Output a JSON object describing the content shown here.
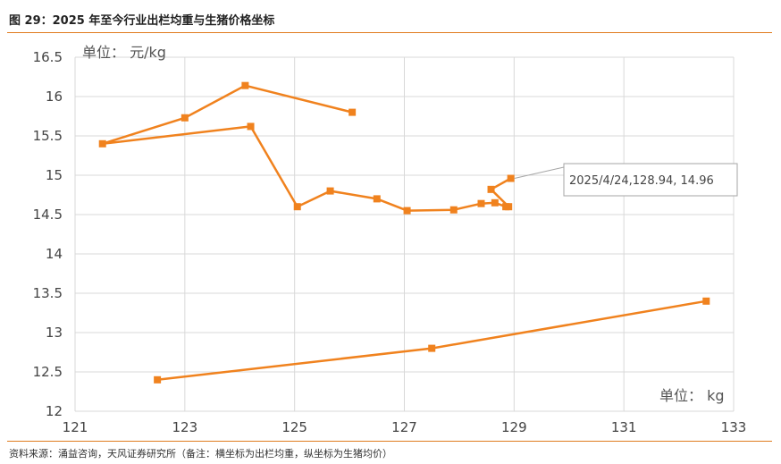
{
  "title": "图 29：2025 年至今行业出栏均重与生猪价格坐标",
  "source": "资料来源：涌益咨询，天风证券研究所（备注：横坐标为出栏均重，纵坐标为生猪均价）",
  "colors": {
    "series": "#F0821E",
    "grid": "#D9D9D9",
    "rule": "#E07C1F",
    "callout_border": "#A6A6A6"
  },
  "chart_data": {
    "type": "scatter",
    "lines": true,
    "x": [
      125.05,
      125.65,
      126.5,
      127.05,
      127.9,
      128.4,
      128.65,
      128.85,
      128.9,
      128.58,
      128.94
    ],
    "y": [
      14.6,
      14.8,
      14.7,
      14.55,
      14.56,
      14.64,
      14.65,
      14.6,
      14.6,
      14.82,
      14.96
    ],
    "series": [
      {
        "x": [
          126.05,
          124.1,
          123.0,
          121.5,
          124.2,
          125.05,
          125.65,
          126.5,
          127.05,
          127.9,
          128.4,
          128.65,
          128.85,
          128.9,
          128.58,
          128.94
        ],
        "y": [
          15.8,
          16.14,
          15.73,
          15.4,
          15.62,
          14.6,
          14.8,
          14.7,
          14.55,
          14.56,
          14.64,
          14.65,
          14.6,
          14.6,
          14.82,
          14.96
        ]
      },
      {
        "x": [
          122.5,
          127.5,
          132.5
        ],
        "y": [
          12.4,
          12.8,
          13.4
        ]
      }
    ],
    "xlim": [
      121,
      133
    ],
    "ylim": [
      12,
      16.5
    ],
    "xticks": [
      "121",
      "123",
      "125",
      "127",
      "129",
      "131",
      "133"
    ],
    "yticks": [
      "12",
      "12.5",
      "13",
      "13.5",
      "14",
      "14.5",
      "15",
      "15.5",
      "16",
      "16.5"
    ],
    "ylabel": "单位： 元/kg",
    "xlabel": "单位： kg",
    "annotation": {
      "text": "2025/4/24,128.94, 14.96",
      "x": 128.94,
      "y": 14.96
    },
    "grid": true
  }
}
